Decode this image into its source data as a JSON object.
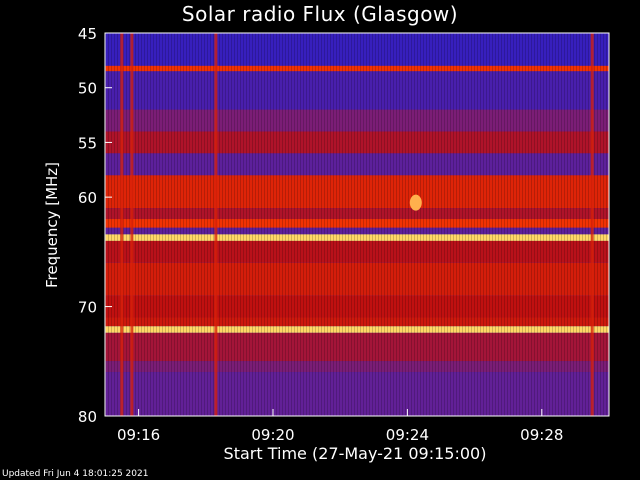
{
  "chart_data": {
    "type": "heatmap",
    "title": "Solar radio Flux (Glasgow)",
    "xlabel": "Start Time (27-May-21 09:15:00)",
    "ylabel": "Frequency [MHz]",
    "x_ticks": [
      "09:16",
      "09:20",
      "09:24",
      "09:28"
    ],
    "x_tick_minutes": [
      1,
      5,
      9,
      13
    ],
    "xlim_minutes": [
      0,
      15
    ],
    "y_ticks": [
      45,
      50,
      55,
      60,
      70,
      80
    ],
    "ylim": [
      45,
      80
    ],
    "colormap": [
      "#2a1fc8",
      "#6a2090",
      "#c01010",
      "#ff3a00",
      "#ffff80"
    ],
    "bands": [
      {
        "from": 45.5,
        "to": 48,
        "level": 0.05
      },
      {
        "from": 48,
        "to": 48.5,
        "level": 0.7
      },
      {
        "from": 48.5,
        "to": 52,
        "level": 0.12
      },
      {
        "from": 52,
        "to": 54,
        "level": 0.3
      },
      {
        "from": 54,
        "to": 56,
        "level": 0.45
      },
      {
        "from": 56,
        "to": 58,
        "level": 0.2
      },
      {
        "from": 58,
        "to": 61,
        "level": 0.62
      },
      {
        "from": 61,
        "to": 62,
        "level": 0.45
      },
      {
        "from": 62,
        "to": 62.8,
        "level": 0.7
      },
      {
        "from": 62.8,
        "to": 63.4,
        "level": 0.2
      },
      {
        "from": 63.4,
        "to": 64,
        "level": 0.95
      },
      {
        "from": 64,
        "to": 66,
        "level": 0.48
      },
      {
        "from": 66,
        "to": 69,
        "level": 0.58
      },
      {
        "from": 69,
        "to": 71,
        "level": 0.5
      },
      {
        "from": 71,
        "to": 71.8,
        "level": 0.55
      },
      {
        "from": 71.8,
        "to": 72.4,
        "level": 0.95
      },
      {
        "from": 72.4,
        "to": 75,
        "level": 0.42
      },
      {
        "from": 75,
        "to": 76,
        "level": 0.3
      },
      {
        "from": 76,
        "to": 80,
        "level": 0.22
      }
    ],
    "bright_columns_minutes": [
      0.5,
      0.8,
      3.3,
      14.5
    ],
    "bright_spot": {
      "time_minutes": 9.25,
      "frequency": 60.5
    }
  },
  "footer": "Updated Fri Jun  4 18:01:25 2021"
}
